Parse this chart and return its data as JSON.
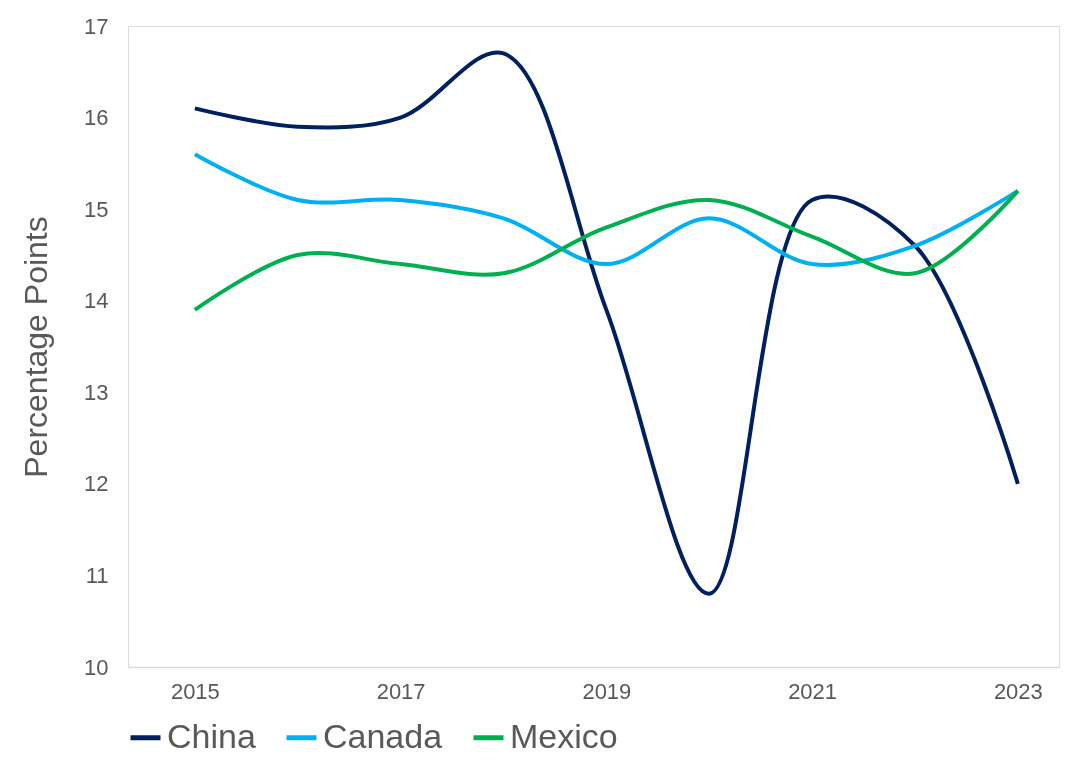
{
  "chart_data": {
    "type": "line",
    "ylabel": "Percentage Points",
    "x": [
      2015,
      2016,
      2017,
      2018,
      2019,
      2020,
      2021,
      2022,
      2023
    ],
    "series": [
      {
        "name": "China",
        "color": "#002060",
        "values": [
          16.1,
          15.9,
          16.0,
          16.7,
          13.9,
          10.8,
          15.1,
          14.6,
          12.0
        ]
      },
      {
        "name": "Canada",
        "color": "#00b0f0",
        "values": [
          15.6,
          15.1,
          15.1,
          14.9,
          14.4,
          14.9,
          14.4,
          14.6,
          15.2
        ]
      },
      {
        "name": "Mexico",
        "color": "#00b050",
        "values": [
          13.9,
          14.5,
          14.4,
          14.3,
          14.8,
          15.1,
          14.7,
          14.3,
          15.2
        ]
      }
    ],
    "xlim": [
      2014.35,
      2023.4
    ],
    "xticks": [
      2015,
      2017,
      2019,
      2021,
      2023
    ],
    "ylim": [
      10,
      17
    ],
    "yticks": [
      10,
      11,
      12,
      13,
      14,
      15,
      16,
      17
    ],
    "grid": false,
    "legend": "bottom",
    "marker": "none",
    "line_style": "solid"
  }
}
